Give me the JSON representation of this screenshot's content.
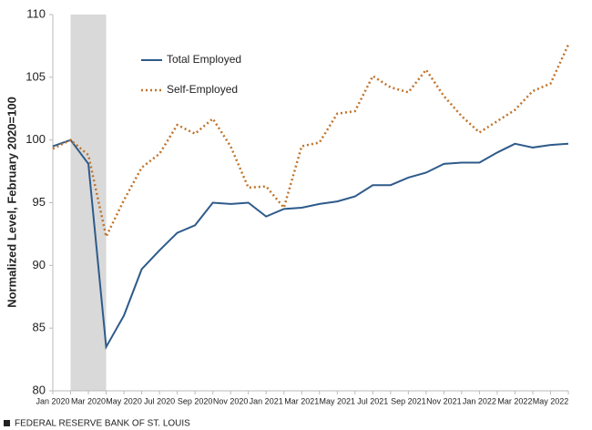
{
  "chart_data": {
    "type": "line",
    "y_label": "Normalized Level, February 2020=100",
    "source": "FEDERAL RESERVE BANK OF ST. LOUIS",
    "categories": [
      "Jan 2020",
      null,
      "Mar 2020",
      null,
      "May 2020",
      null,
      "Jul 2020",
      null,
      "Sep 2020",
      null,
      "Nov 2020",
      null,
      "Jan 2021",
      null,
      "Mar 2021",
      null,
      "May 2021",
      null,
      "Jul 2021",
      null,
      "Sep 2021",
      null,
      "Nov 2021",
      null,
      "Jan 2022",
      null,
      "Mar 2022",
      null,
      "May 2022",
      null
    ],
    "series": [
      {
        "name": "Total Employed",
        "color": "#2e5b8a",
        "dash": "solid",
        "values": [
          99.5,
          100,
          98.1,
          83.5,
          86,
          89.7,
          91.2,
          92.6,
          93.2,
          95.0,
          94.9,
          95.0,
          93.9,
          94.5,
          94.6,
          94.9,
          95.1,
          95.5,
          96.4,
          96.4,
          97.0,
          97.4,
          98.1,
          98.2,
          98.2,
          99.0,
          99.7,
          99.4,
          99.6,
          99.7
        ]
      },
      {
        "name": "Self-Employed",
        "color": "#c0732a",
        "dash": "dotted",
        "values": [
          99.3,
          100,
          98.8,
          92.3,
          95.2,
          97.8,
          98.9,
          101.2,
          100.5,
          101.7,
          99.5,
          96.2,
          96.3,
          94.6,
          99.5,
          99.8,
          102.1,
          102.3,
          105.1,
          104.2,
          103.8,
          105.6,
          103.5,
          101.9,
          100.6,
          101.5,
          102.4,
          103.9,
          104.5,
          107.6
        ]
      }
    ],
    "shaded_index_range": [
      1,
      3
    ],
    "shade_color": "#d9d9d9",
    "ylim": [
      80,
      110
    ],
    "yticks": [
      80,
      85,
      90,
      95,
      100,
      105,
      110
    ],
    "grid": false,
    "legend": "upper left"
  }
}
